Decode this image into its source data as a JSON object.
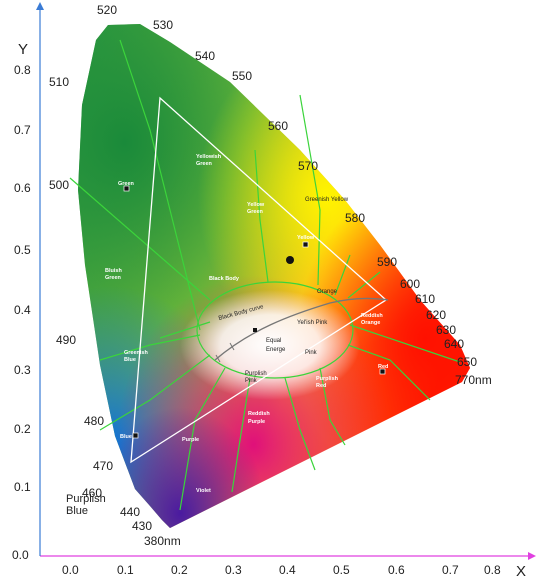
{
  "axes": {
    "x_title": "X",
    "y_title": "Y",
    "x_ticks": [
      "0.0",
      "0.1",
      "0.2",
      "0.3",
      "0.4",
      "0.5",
      "0.6",
      "0.7",
      "0.8"
    ],
    "y_ticks": [
      "0.0",
      "0.1",
      "0.2",
      "0.3",
      "0.4",
      "0.5",
      "0.6",
      "0.7",
      "0.8"
    ]
  },
  "wavelengths": {
    "w380": "380nm",
    "w430": "430",
    "w440": "440",
    "w460": "460",
    "w470": "470",
    "w480": "480",
    "w490": "490",
    "w500": "500",
    "w510": "510",
    "w520": "520",
    "w530": "530",
    "w540": "540",
    "w550": "550",
    "w560": "560",
    "w570": "570",
    "w580": "580",
    "w590": "590",
    "w600": "600",
    "w610": "610",
    "w620": "620",
    "w630": "630",
    "w640": "640",
    "w650": "650",
    "w770": "770nm"
  },
  "regions": {
    "yellowish_green_1": "Yellowish",
    "yellowish_green_2": "Green",
    "green": "Green",
    "yellow_green_1": "Yellow",
    "yellow_green_2": "Green",
    "greenish_yellow": "Greenish Yellow",
    "yellow": "Yellow",
    "bluish_green_1": "Bluish",
    "bluish_green_2": "Green",
    "black_body": "Black Body",
    "orange": "Orange",
    "black_body_curve": "Black Body curve",
    "yellish_pink": "Yel'ish Pink",
    "reddish_orange_1": "Reddish",
    "reddish_orange_2": "Orange",
    "equal_1": "Equal",
    "equal_2": "Energe",
    "pink": "Pink",
    "greenish_blue_1": "Greenish",
    "greenish_blue_2": "Blue",
    "red": "Red",
    "purplish_pink_1": "Purplish",
    "purplish_pink_2": "Pink",
    "purplish_red_1": "Purplish",
    "purplish_red_2": "Red",
    "reddish_purple_1": "Reddish",
    "reddish_purple_2": "Purple",
    "blue": "Blue",
    "purple": "Purple",
    "violet": "Violet",
    "purplish_blue_1": "Purplish",
    "purplish_blue_2": "Blue"
  },
  "colors": {
    "axis_x": "#e040e0",
    "axis_y": "#3a7bd5",
    "boundary_lines": "#3bd43b",
    "gamut_triangle": "#ffffff",
    "bbl_curve": "#777777"
  }
}
